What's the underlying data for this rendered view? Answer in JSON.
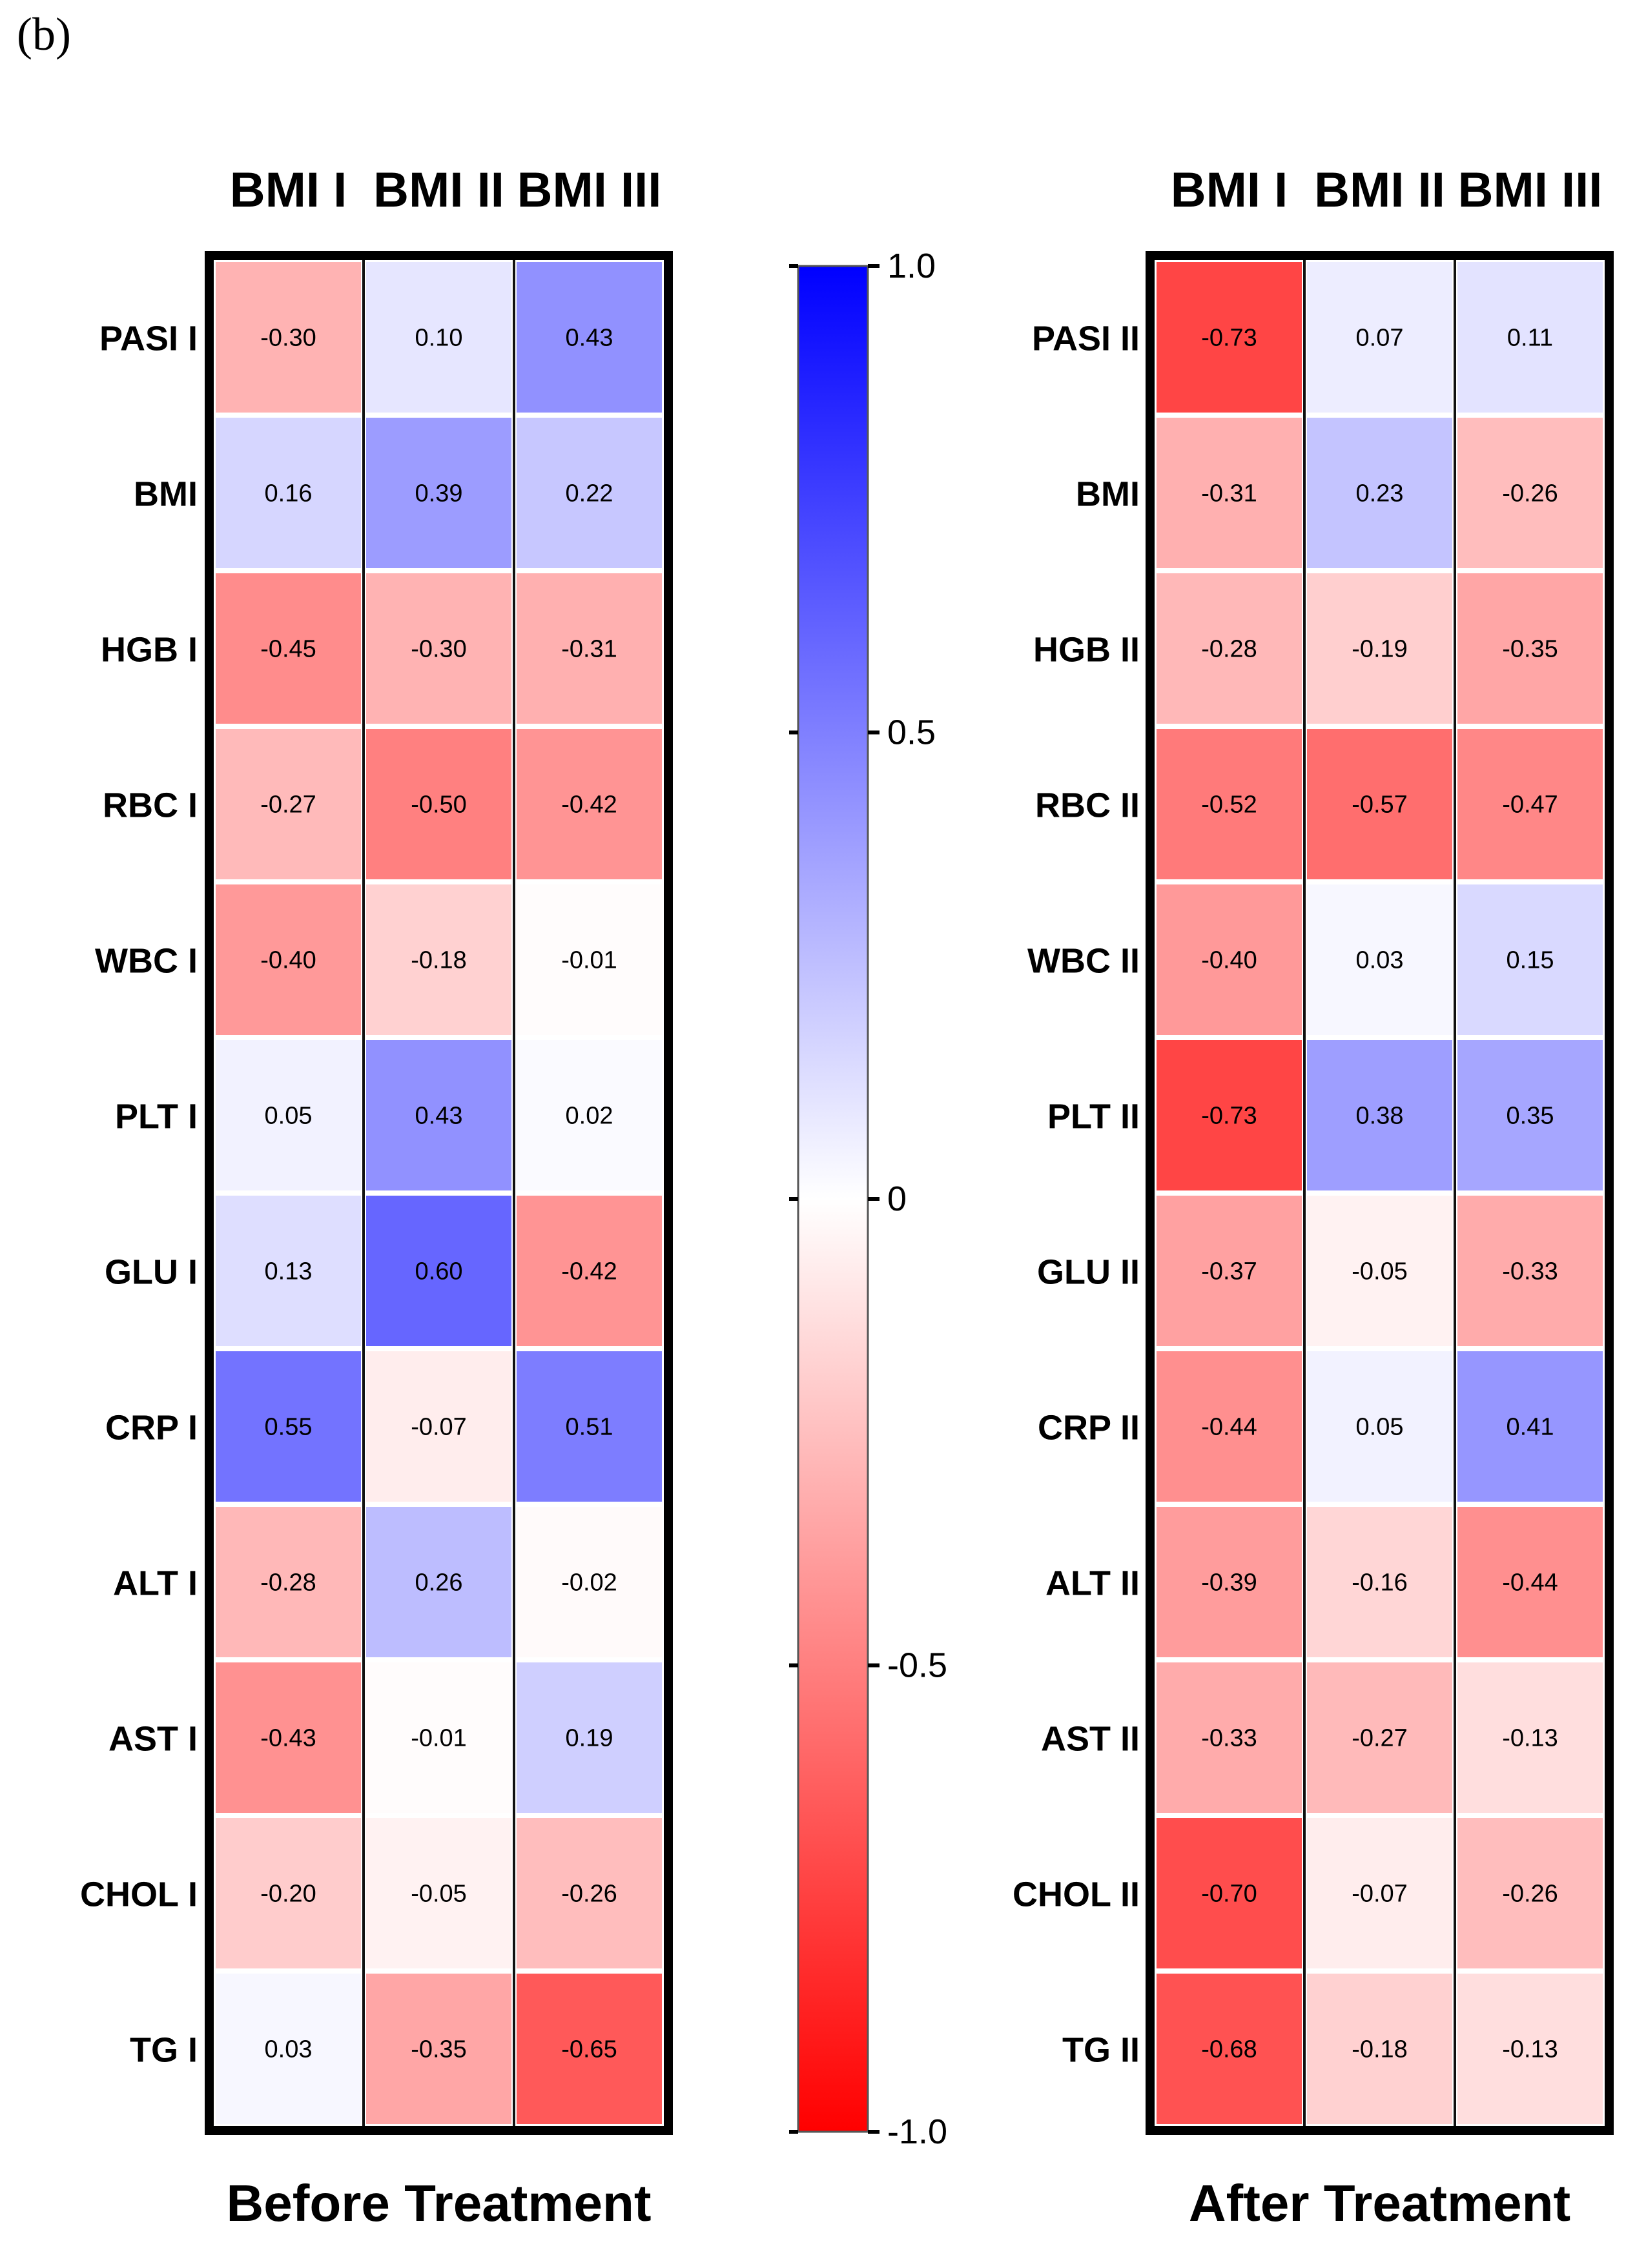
{
  "panel_label": "(b)",
  "colorbar": {
    "ticks": [
      1.0,
      0.5,
      0,
      -0.5,
      -1.0
    ],
    "tick_labels": [
      "1.0",
      "0.5",
      "0",
      "-0.5",
      "-1.0"
    ],
    "colors": {
      "max": "#0000ff",
      "mid": "#ffffff",
      "min": "#ff0000"
    }
  },
  "chart_data": [
    {
      "type": "heatmap",
      "title": "Before Treatment",
      "columns": [
        "BMI I",
        "BMI II",
        "BMI III"
      ],
      "rows": [
        "PASI I",
        "BMI",
        "HGB I",
        "RBC I",
        "WBC I",
        "PLT I",
        "GLU I",
        "CRP I",
        "ALT I",
        "AST I",
        "CHOL I",
        "TG I"
      ],
      "values": [
        [
          -0.3,
          0.1,
          0.43
        ],
        [
          0.16,
          0.39,
          0.22
        ],
        [
          -0.45,
          -0.3,
          -0.31
        ],
        [
          -0.27,
          -0.5,
          -0.42
        ],
        [
          -0.4,
          -0.18,
          -0.01
        ],
        [
          0.05,
          0.43,
          0.02
        ],
        [
          0.13,
          0.6,
          -0.42
        ],
        [
          0.55,
          -0.07,
          0.51
        ],
        [
          -0.28,
          0.26,
          -0.02
        ],
        [
          -0.43,
          -0.01,
          0.19
        ],
        [
          -0.2,
          -0.05,
          -0.26
        ],
        [
          0.03,
          -0.35,
          -0.65
        ]
      ],
      "labels": [
        [
          "-0.30",
          "0.10",
          "0.43"
        ],
        [
          "0.16",
          "0.39",
          "0.22"
        ],
        [
          "-0.45",
          "-0.30",
          "-0.31"
        ],
        [
          "-0.27",
          "-0.50",
          "-0.42"
        ],
        [
          "-0.40",
          "-0.18",
          "-0.01"
        ],
        [
          "0.05",
          "0.43",
          "0.02"
        ],
        [
          "0.13",
          "0.60",
          "-0.42"
        ],
        [
          "0.55",
          "-0.07",
          "0.51"
        ],
        [
          "-0.28",
          "0.26",
          "-0.02"
        ],
        [
          "-0.43",
          "-0.01",
          "0.19"
        ],
        [
          "-0.20",
          "-0.05",
          "-0.26"
        ],
        [
          "0.03",
          "-0.35",
          "-0.65"
        ]
      ],
      "zlim": [
        -1.0,
        1.0
      ]
    },
    {
      "type": "heatmap",
      "title": "After Treatment",
      "columns": [
        "BMI I",
        "BMI II",
        "BMI III"
      ],
      "rows": [
        "PASI II",
        "BMI",
        "HGB II",
        "RBC II",
        "WBC II",
        "PLT II",
        "GLU II",
        "CRP II",
        "ALT II",
        "AST II",
        "CHOL II",
        "TG II"
      ],
      "values": [
        [
          -0.73,
          0.07,
          0.11
        ],
        [
          -0.31,
          0.23,
          -0.26
        ],
        [
          -0.28,
          -0.19,
          -0.35
        ],
        [
          -0.52,
          -0.57,
          -0.47
        ],
        [
          -0.4,
          0.03,
          0.15
        ],
        [
          -0.73,
          0.38,
          0.35
        ],
        [
          -0.37,
          -0.05,
          -0.33
        ],
        [
          -0.44,
          0.05,
          0.41
        ],
        [
          -0.39,
          -0.16,
          -0.44
        ],
        [
          -0.33,
          -0.27,
          -0.13
        ],
        [
          -0.7,
          -0.07,
          -0.26
        ],
        [
          -0.68,
          -0.18,
          -0.13
        ]
      ],
      "labels": [
        [
          "-0.73",
          "0.07",
          "0.11"
        ],
        [
          "-0.31",
          "0.23",
          "-0.26"
        ],
        [
          "-0.28",
          "-0.19",
          "-0.35"
        ],
        [
          "-0.52",
          "-0.57",
          "-0.47"
        ],
        [
          "-0.40",
          "0.03",
          "0.15"
        ],
        [
          "-0.73",
          "0.38",
          "0.35"
        ],
        [
          "-0.37",
          "-0.05",
          "-0.33"
        ],
        [
          "-0.44",
          "0.05",
          "0.41"
        ],
        [
          "-0.39",
          "-0.16",
          "-0.44"
        ],
        [
          "-0.33",
          "-0.27",
          "-0.13"
        ],
        [
          "-0.70",
          "-0.07",
          "-0.26"
        ],
        [
          "-0.68",
          "-0.18",
          "-0.13"
        ]
      ],
      "zlim": [
        -1.0,
        1.0
      ]
    }
  ]
}
